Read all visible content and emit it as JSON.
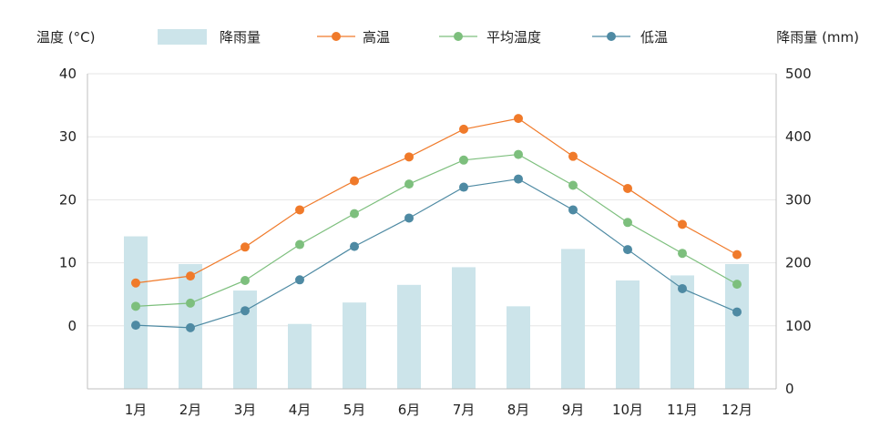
{
  "chart_data": {
    "type": "bar+line",
    "categories": [
      "1月",
      "2月",
      "3月",
      "4月",
      "5月",
      "6月",
      "7月",
      "8月",
      "9月",
      "10月",
      "11月",
      "12月"
    ],
    "y_left": {
      "label": "温度 (°C)",
      "ticks": [
        0,
        10,
        20,
        30,
        40
      ],
      "range": [
        -10,
        40
      ]
    },
    "y_right": {
      "label": "降雨量 (mm)",
      "ticks": [
        0,
        100,
        200,
        300,
        400,
        500
      ],
      "range": [
        0,
        500
      ]
    },
    "bars": {
      "name": "降雨量",
      "color": "#cce4ea",
      "values": [
        242,
        198,
        156,
        103,
        137,
        165,
        193,
        131,
        222,
        172,
        180,
        198
      ]
    },
    "series": [
      {
        "name": "高温",
        "color": "#f07a2a",
        "values": [
          6.8,
          7.9,
          12.5,
          18.4,
          23.0,
          26.8,
          31.2,
          32.9,
          26.9,
          21.8,
          16.1,
          11.3
        ]
      },
      {
        "name": "平均温度",
        "color": "#7dbf7d",
        "values": [
          3.1,
          3.6,
          7.2,
          12.9,
          17.8,
          22.5,
          26.3,
          27.2,
          22.3,
          16.4,
          11.5,
          6.6
        ]
      },
      {
        "name": "低温",
        "color": "#4e8aa3",
        "values": [
          0.1,
          -0.3,
          2.4,
          7.3,
          12.6,
          17.1,
          22.0,
          23.3,
          18.4,
          12.1,
          5.9,
          2.2
        ]
      }
    ],
    "grid": true,
    "legend_position": "top"
  }
}
